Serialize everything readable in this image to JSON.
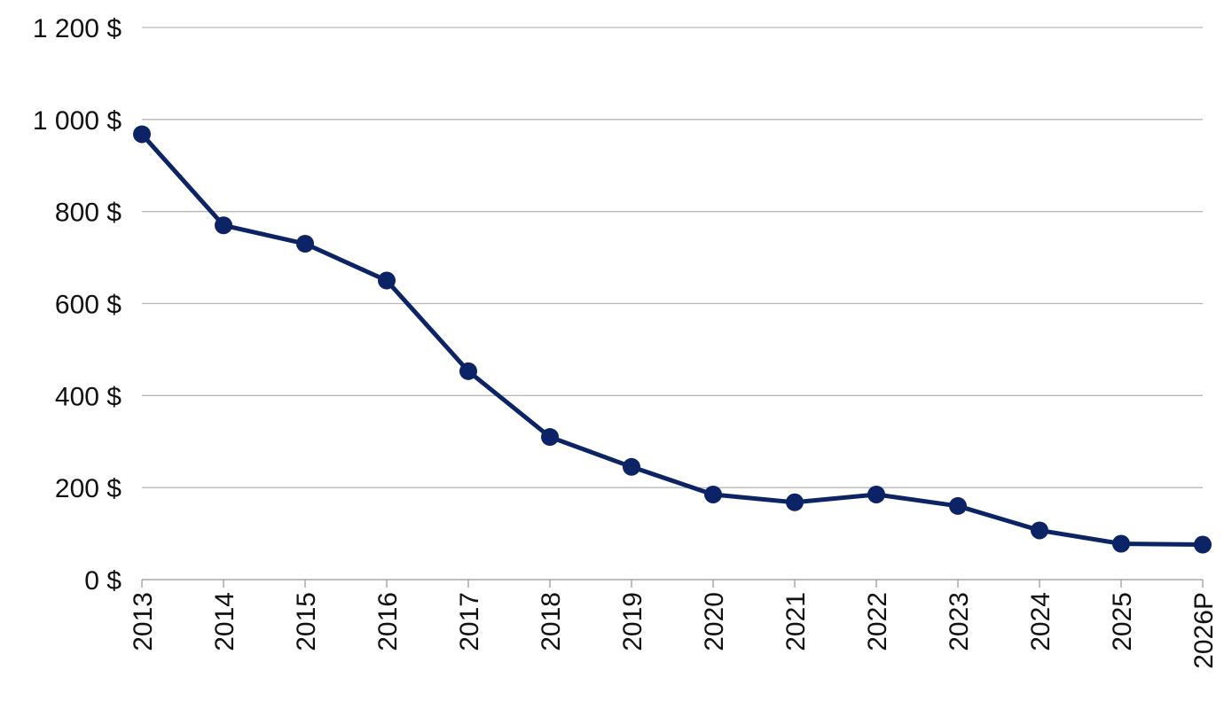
{
  "chart_data": {
    "type": "line",
    "title": "",
    "xlabel": "",
    "ylabel": "",
    "categories": [
      "2013",
      "2014",
      "2015",
      "2016",
      "2017",
      "2018",
      "2019",
      "2020",
      "2021",
      "2022",
      "2023",
      "2024",
      "2025",
      "2026P"
    ],
    "series": [
      {
        "values": [
          968,
          770,
          730,
          650,
          453,
          310,
          245,
          185,
          168,
          185,
          160,
          107,
          78,
          76
        ],
        "color": "#0c2465"
      }
    ],
    "ylim": [
      0,
      1200
    ],
    "y_ticks": [
      {
        "value": 0,
        "label": "0 $"
      },
      {
        "value": 200,
        "label": "200 $"
      },
      {
        "value": 400,
        "label": "400 $"
      },
      {
        "value": 600,
        "label": "600 $"
      },
      {
        "value": 800,
        "label": "800 $"
      },
      {
        "value": 1000,
        "label": "1 000 $"
      },
      {
        "value": 1200,
        "label": "1 200 $"
      }
    ],
    "grid": true,
    "legend": "none",
    "colors": {
      "grid": "#b7b7b7",
      "axis": "#a9a9a9",
      "text": "#111111"
    }
  }
}
